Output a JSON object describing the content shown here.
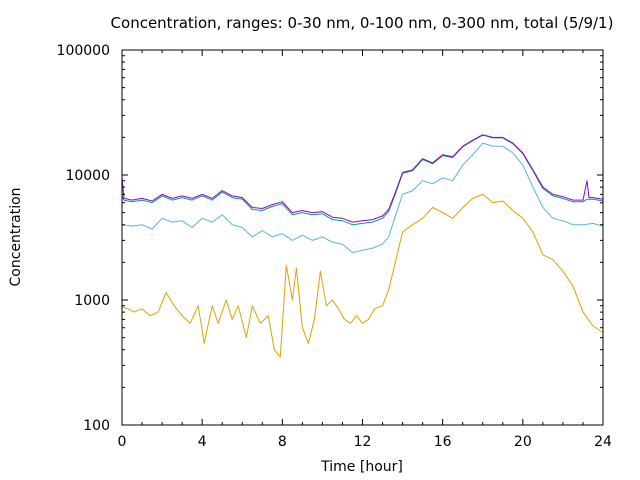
{
  "chart_data": {
    "type": "line",
    "title": "Concentration, ranges: 0-30 nm, 0-100 nm, 0-300 nm, total (5/9/1)",
    "xlabel": "Time [hour]",
    "ylabel": "Concentration",
    "xlim": [
      0,
      24
    ],
    "ylim": [
      100,
      100000
    ],
    "yscale": "log",
    "grid": false,
    "legend": "none",
    "x_ticks": [
      0,
      4,
      8,
      12,
      16,
      20,
      24
    ],
    "y_ticks": [
      100,
      1000,
      10000,
      100000
    ],
    "y_tick_labels": [
      "100",
      "1000",
      "10000",
      "100000"
    ],
    "series": [
      {
        "color": "#9400d3",
        "points": [
          [
            0,
            9500
          ],
          [
            0.1,
            6500
          ],
          [
            0.5,
            6300
          ],
          [
            1,
            6500
          ],
          [
            1.5,
            6200
          ],
          [
            2,
            7000
          ],
          [
            2.5,
            6500
          ],
          [
            3,
            6800
          ],
          [
            3.5,
            6500
          ],
          [
            4,
            7000
          ],
          [
            4.5,
            6500
          ],
          [
            5,
            7500
          ],
          [
            5.5,
            6800
          ],
          [
            6,
            6600
          ],
          [
            6.5,
            5500
          ],
          [
            7,
            5400
          ],
          [
            7.5,
            5800
          ],
          [
            8,
            6100
          ],
          [
            8.5,
            5000
          ],
          [
            9,
            5200
          ],
          [
            9.5,
            5000
          ],
          [
            10,
            5100
          ],
          [
            10.5,
            4600
          ],
          [
            11,
            4500
          ],
          [
            11.5,
            4200
          ],
          [
            12,
            4300
          ],
          [
            12.5,
            4400
          ],
          [
            13,
            4700
          ],
          [
            13.3,
            5300
          ],
          [
            13.6,
            7000
          ],
          [
            14,
            10500
          ],
          [
            14.5,
            11000
          ],
          [
            15,
            13500
          ],
          [
            15.5,
            12500
          ],
          [
            16,
            14500
          ],
          [
            16.5,
            14000
          ],
          [
            17,
            17000
          ],
          [
            17.5,
            19000
          ],
          [
            18,
            21000
          ],
          [
            18.5,
            20000
          ],
          [
            19,
            20000
          ],
          [
            19.5,
            18000
          ],
          [
            20,
            15000
          ],
          [
            20.5,
            11000
          ],
          [
            21,
            8000
          ],
          [
            21.5,
            7000
          ],
          [
            22,
            6700
          ],
          [
            22.5,
            6300
          ],
          [
            23,
            6300
          ],
          [
            23.2,
            9000
          ],
          [
            23.3,
            6600
          ],
          [
            23.5,
            6600
          ],
          [
            24,
            6400
          ]
        ]
      },
      {
        "color": "#009e73",
        "points": [
          [
            0,
            6800
          ],
          [
            0.1,
            6300
          ],
          [
            0.5,
            6100
          ],
          [
            1,
            6300
          ],
          [
            1.5,
            6000
          ],
          [
            2,
            6800
          ],
          [
            2.5,
            6300
          ],
          [
            3,
            6600
          ],
          [
            3.5,
            6300
          ],
          [
            4,
            6800
          ],
          [
            4.5,
            6300
          ],
          [
            5,
            7300
          ],
          [
            5.5,
            6600
          ],
          [
            6,
            6400
          ],
          [
            6.5,
            5300
          ],
          [
            7,
            5200
          ],
          [
            7.5,
            5600
          ],
          [
            8,
            5900
          ],
          [
            8.5,
            4800
          ],
          [
            9,
            5000
          ],
          [
            9.5,
            4800
          ],
          [
            10,
            4900
          ],
          [
            10.5,
            4400
          ],
          [
            11,
            4300
          ],
          [
            11.5,
            4000
          ],
          [
            12,
            4100
          ],
          [
            12.5,
            4200
          ],
          [
            13,
            4500
          ],
          [
            13.3,
            5100
          ],
          [
            13.6,
            6800
          ],
          [
            14,
            10300
          ],
          [
            14.5,
            10800
          ],
          [
            15,
            13300
          ],
          [
            15.5,
            12300
          ],
          [
            16,
            14300
          ],
          [
            16.5,
            13800
          ],
          [
            17,
            16800
          ],
          [
            17.5,
            18800
          ],
          [
            18,
            20800
          ],
          [
            18.5,
            19800
          ],
          [
            19,
            19800
          ],
          [
            19.5,
            17800
          ],
          [
            20,
            14800
          ],
          [
            20.5,
            10800
          ],
          [
            21,
            7800
          ],
          [
            21.5,
            6800
          ],
          [
            22,
            6500
          ],
          [
            22.5,
            6100
          ],
          [
            23,
            6100
          ],
          [
            23.2,
            6400
          ],
          [
            23.3,
            6400
          ],
          [
            23.5,
            6400
          ],
          [
            24,
            6200
          ]
        ]
      },
      {
        "color": "#56b4e9",
        "points": [
          [
            0,
            4000
          ],
          [
            0.5,
            3900
          ],
          [
            1,
            4000
          ],
          [
            1.5,
            3700
          ],
          [
            2,
            4500
          ],
          [
            2.5,
            4200
          ],
          [
            3,
            4300
          ],
          [
            3.5,
            3800
          ],
          [
            4,
            4500
          ],
          [
            4.5,
            4200
          ],
          [
            5,
            4800
          ],
          [
            5.5,
            4000
          ],
          [
            6,
            3800
          ],
          [
            6.5,
            3200
          ],
          [
            7,
            3600
          ],
          [
            7.5,
            3200
          ],
          [
            8,
            3400
          ],
          [
            8.5,
            3000
          ],
          [
            9,
            3300
          ],
          [
            9.5,
            3000
          ],
          [
            10,
            3200
          ],
          [
            10.5,
            2900
          ],
          [
            11,
            2800
          ],
          [
            11.5,
            2400
          ],
          [
            12,
            2500
          ],
          [
            12.5,
            2600
          ],
          [
            13,
            2800
          ],
          [
            13.3,
            3200
          ],
          [
            13.6,
            4500
          ],
          [
            14,
            7000
          ],
          [
            14.5,
            7500
          ],
          [
            15,
            9000
          ],
          [
            15.5,
            8500
          ],
          [
            16,
            9500
          ],
          [
            16.5,
            9000
          ],
          [
            17,
            12000
          ],
          [
            17.5,
            14500
          ],
          [
            18,
            18000
          ],
          [
            18.5,
            17000
          ],
          [
            19,
            17000
          ],
          [
            19.5,
            15000
          ],
          [
            20,
            12000
          ],
          [
            20.5,
            8000
          ],
          [
            21,
            5500
          ],
          [
            21.5,
            4500
          ],
          [
            22,
            4300
          ],
          [
            22.5,
            4000
          ],
          [
            23,
            4000
          ],
          [
            23.5,
            4100
          ],
          [
            24,
            3900
          ]
        ]
      },
      {
        "color": "#e69f00",
        "points": [
          [
            0,
            880
          ],
          [
            0.3,
            850
          ],
          [
            0.6,
            800
          ],
          [
            1,
            850
          ],
          [
            1.4,
            750
          ],
          [
            1.8,
            800
          ],
          [
            2.2,
            1150
          ],
          [
            2.6,
            900
          ],
          [
            3,
            750
          ],
          [
            3.4,
            650
          ],
          [
            3.8,
            900
          ],
          [
            4.1,
            450
          ],
          [
            4.5,
            900
          ],
          [
            4.8,
            650
          ],
          [
            5.2,
            1000
          ],
          [
            5.5,
            700
          ],
          [
            5.8,
            900
          ],
          [
            6.2,
            500
          ],
          [
            6.5,
            900
          ],
          [
            6.9,
            650
          ],
          [
            7.3,
            750
          ],
          [
            7.6,
            400
          ],
          [
            7.9,
            350
          ],
          [
            8.2,
            1900
          ],
          [
            8.5,
            1000
          ],
          [
            8.7,
            1800
          ],
          [
            9,
            600
          ],
          [
            9.3,
            450
          ],
          [
            9.6,
            700
          ],
          [
            9.9,
            1700
          ],
          [
            10.2,
            900
          ],
          [
            10.5,
            1000
          ],
          [
            10.8,
            850
          ],
          [
            11.1,
            700
          ],
          [
            11.4,
            650
          ],
          [
            11.7,
            750
          ],
          [
            12,
            650
          ],
          [
            12.3,
            700
          ],
          [
            12.6,
            850
          ],
          [
            13,
            900
          ],
          [
            13.3,
            1200
          ],
          [
            13.6,
            1900
          ],
          [
            14,
            3500
          ],
          [
            14.5,
            4000
          ],
          [
            15,
            4500
          ],
          [
            15.5,
            5500
          ],
          [
            16,
            5000
          ],
          [
            16.5,
            4500
          ],
          [
            17,
            5500
          ],
          [
            17.5,
            6500
          ],
          [
            18,
            7000
          ],
          [
            18.5,
            6000
          ],
          [
            19,
            6200
          ],
          [
            19.5,
            5200
          ],
          [
            20,
            4500
          ],
          [
            20.5,
            3500
          ],
          [
            21,
            2300
          ],
          [
            21.5,
            2100
          ],
          [
            22,
            1700
          ],
          [
            22.5,
            1300
          ],
          [
            23,
            800
          ],
          [
            23.5,
            620
          ],
          [
            24,
            550
          ]
        ]
      }
    ]
  }
}
